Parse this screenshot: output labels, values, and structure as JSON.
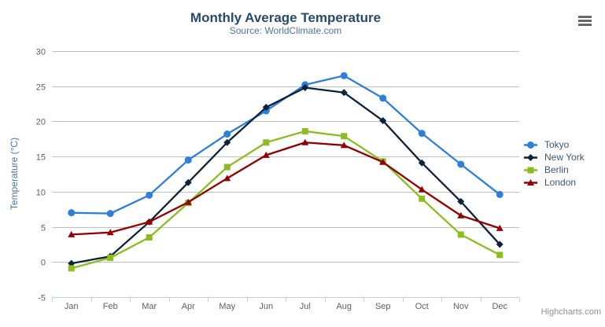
{
  "chart_data": {
    "type": "line",
    "title": "Monthly Average Temperature",
    "subtitle": "Source: WorldClimate.com",
    "ylabel": "Temperature (°C)",
    "xlabel": "",
    "categories": [
      "Jan",
      "Feb",
      "Mar",
      "Apr",
      "May",
      "Jun",
      "Jul",
      "Aug",
      "Sep",
      "Oct",
      "Nov",
      "Dec"
    ],
    "ylim": [
      -5,
      30
    ],
    "ytick_step": 5,
    "grid": true,
    "legend_position": "right",
    "series": [
      {
        "name": "Tokyo",
        "color": "#2f7ed8",
        "marker": "circle",
        "values": [
          7.0,
          6.9,
          9.5,
          14.5,
          18.2,
          21.5,
          25.2,
          26.5,
          23.3,
          18.3,
          13.9,
          9.6
        ]
      },
      {
        "name": "New York",
        "color": "#0d233a",
        "marker": "diamond",
        "values": [
          -0.2,
          0.8,
          5.7,
          11.3,
          17.0,
          22.0,
          24.8,
          24.1,
          20.1,
          14.1,
          8.6,
          2.5
        ]
      },
      {
        "name": "Berlin",
        "color": "#8bbc21",
        "marker": "square",
        "values": [
          -0.9,
          0.6,
          3.5,
          8.4,
          13.5,
          17.0,
          18.6,
          17.9,
          14.3,
          9.0,
          3.9,
          1.0
        ]
      },
      {
        "name": "London",
        "color": "#910000",
        "marker": "triangle",
        "values": [
          3.9,
          4.2,
          5.7,
          8.5,
          11.9,
          15.2,
          17.0,
          16.6,
          14.2,
          10.3,
          6.6,
          4.8
        ]
      }
    ]
  },
  "credits": "Highcharts.com",
  "icons": {
    "menu": "hamburger-icon"
  },
  "colors": {
    "title": "#274b6d",
    "subtitle": "#4d759e",
    "axis_title": "#4d759e",
    "axis_label": "#606060",
    "grid_line": "#C0C0C0",
    "axis_line": "#C0D0E0",
    "legend_text": "#3E576F",
    "credits_text": "#909090"
  }
}
